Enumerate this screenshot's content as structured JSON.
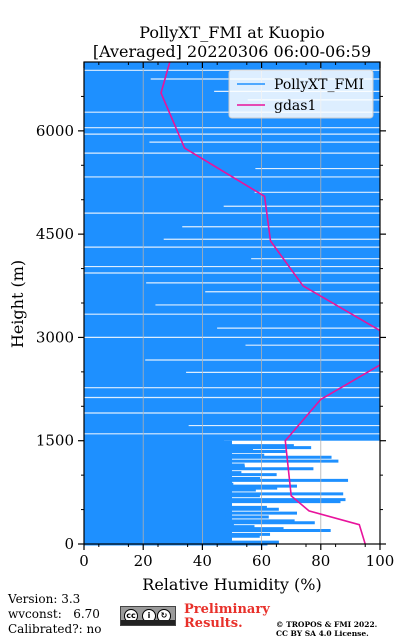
{
  "chart_data": {
    "type": "line",
    "title_line1": "PollyXT_FMI at Kuopio",
    "title_line2": "[Averaged] 20220306 06:00-06:59",
    "xlabel": "Relative Humidity (%)",
    "ylabel": "Height (m)",
    "xlim": [
      0,
      100
    ],
    "ylim": [
      0,
      7000
    ],
    "x_ticks": [
      0,
      20,
      40,
      60,
      80,
      100
    ],
    "y_ticks": [
      0,
      1500,
      3000,
      4500,
      6000
    ],
    "grid": "vertical",
    "legend_position": "top-right",
    "series": [
      {
        "name": "PollyXT_FMI",
        "color": "#1e90ff",
        "fill_between": [
          [
            0,
            1500,
            50
          ],
          [
            1500,
            7000,
            100
          ]
        ]
      },
      {
        "name": "gdas1",
        "color": "#e8139c",
        "points": [
          [
            95,
            0
          ],
          [
            93,
            280
          ],
          [
            76,
            480
          ],
          [
            70,
            700
          ],
          [
            68,
            1500
          ],
          [
            80,
            2100
          ],
          [
            100,
            2600
          ],
          [
            100,
            3100
          ],
          [
            74,
            3750
          ],
          [
            63,
            4400
          ],
          [
            61,
            5050
          ],
          [
            34,
            5750
          ],
          [
            26,
            6550
          ],
          [
            29,
            7000
          ]
        ]
      }
    ]
  },
  "footer": {
    "version": "Version: 3.3",
    "wvconst": "wvconst:   6.70",
    "calibrated": "Calibrated?: no",
    "preliminary_line1": "Preliminary",
    "preliminary_line2": "Results.",
    "copyright_line1": "© TROPOS & FMI 2022.",
    "copyright_line2": "CC BY SA 4.0 License."
  },
  "license_icon": "cc-by-sa-icon"
}
